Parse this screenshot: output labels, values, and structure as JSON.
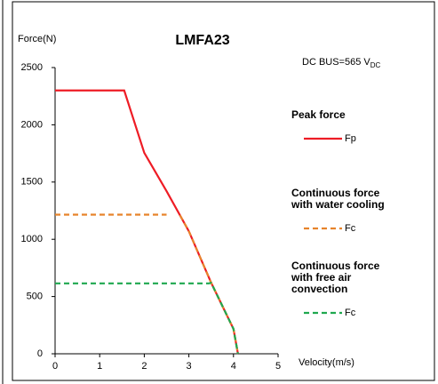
{
  "chart_data": {
    "type": "line",
    "title": "LMFA23",
    "y_label": "Force(N)",
    "x_label": "Velocity(m/s)",
    "annotation": {
      "text": "DC BUS=565 V",
      "subscript": "DC"
    },
    "xlim": [
      0,
      5
    ],
    "xticks": [
      0,
      1,
      2,
      3,
      4,
      5
    ],
    "ylim": [
      0,
      2500
    ],
    "yticks": [
      0,
      500,
      1000,
      1500,
      2000,
      2500
    ],
    "grid": false,
    "series": [
      {
        "name": "Fp",
        "legend_heading": [
          "Peak force"
        ],
        "color": "#ee1c25",
        "dashed": false,
        "x": [
          0,
          1.55,
          2,
          2.5,
          3,
          3.5,
          4,
          4.1
        ],
        "values": [
          2300,
          2300,
          1755,
          1420,
          1070,
          620,
          217,
          0
        ]
      },
      {
        "name": "Fc",
        "legend_heading": [
          "Continuous force",
          "with water cooling"
        ],
        "color": "#e7832b",
        "dashed": true,
        "x": [
          0,
          2.5,
          null,
          2.8,
          3,
          3.5,
          4,
          4.1
        ],
        "values": [
          1215,
          1215,
          null,
          1210,
          1070,
          620,
          217,
          0
        ]
      },
      {
        "name": "Fc",
        "legend_heading": [
          "Continuous force",
          "with free air",
          "convection"
        ],
        "color": "#1fa84f",
        "dashed": true,
        "x": [
          0,
          3.45,
          3.5,
          4,
          4.1
        ],
        "values": [
          615,
          615,
          620,
          217,
          0
        ]
      }
    ]
  }
}
